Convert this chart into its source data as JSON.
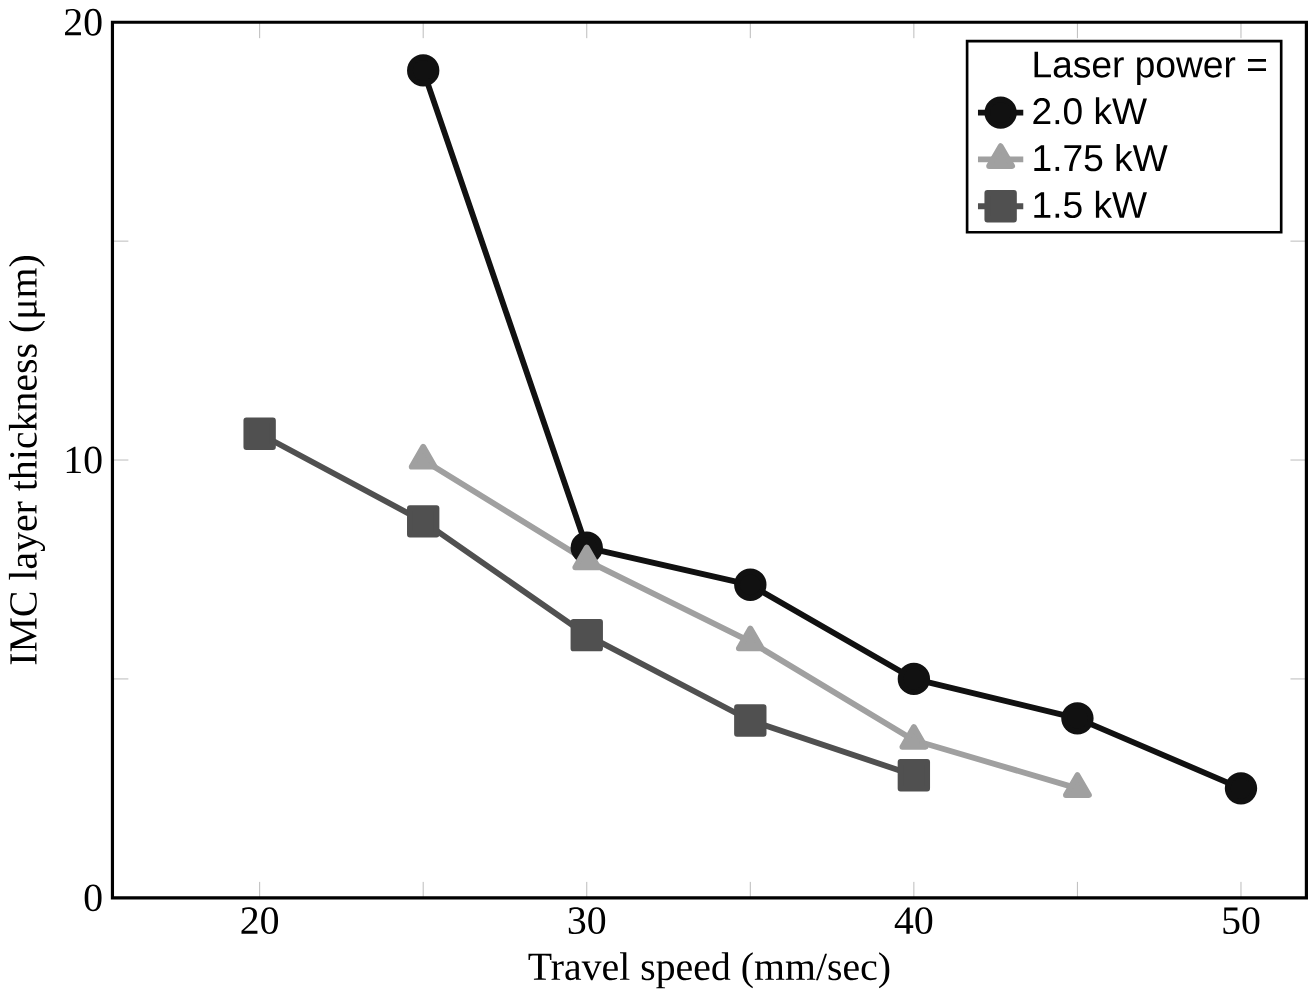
{
  "chart_data": {
    "type": "line",
    "xlabel": "Travel speed (mm/sec)",
    "ylabel": "IMC layer thickness (μm)",
    "legend_title": "Laser power =",
    "legend": "top right",
    "xlim": [
      15.5,
      52
    ],
    "ylim": [
      0,
      20
    ],
    "xticks": [
      20,
      {
        "value": 25,
        "label": null
      },
      30,
      {
        "value": 35,
        "label": null
      },
      40,
      {
        "value": 45,
        "label": null
      },
      50
    ],
    "yticks": [
      0,
      {
        "value": 5,
        "label": null
      },
      10,
      {
        "value": 15,
        "label": null
      },
      20
    ],
    "series": [
      {
        "name": "2.0 kW",
        "color": "#111111",
        "marker": "circle",
        "x": [
          25,
          30,
          35,
          40,
          45,
          50
        ],
        "values": [
          18.9,
          8.0,
          7.15,
          5.0,
          4.1,
          2.5
        ]
      },
      {
        "name": "1.75 kW",
        "color": "#a0a0a0",
        "marker": "triangle",
        "x": [
          25,
          30,
          35,
          40,
          45
        ],
        "values": [
          10.0,
          7.7,
          5.85,
          3.6,
          2.5
        ]
      },
      {
        "name": "1.5 kW",
        "color": "#505050",
        "marker": "square",
        "x": [
          20,
          25,
          30,
          35,
          40
        ],
        "values": [
          10.6,
          8.6,
          6.0,
          4.05,
          2.8
        ]
      }
    ]
  }
}
